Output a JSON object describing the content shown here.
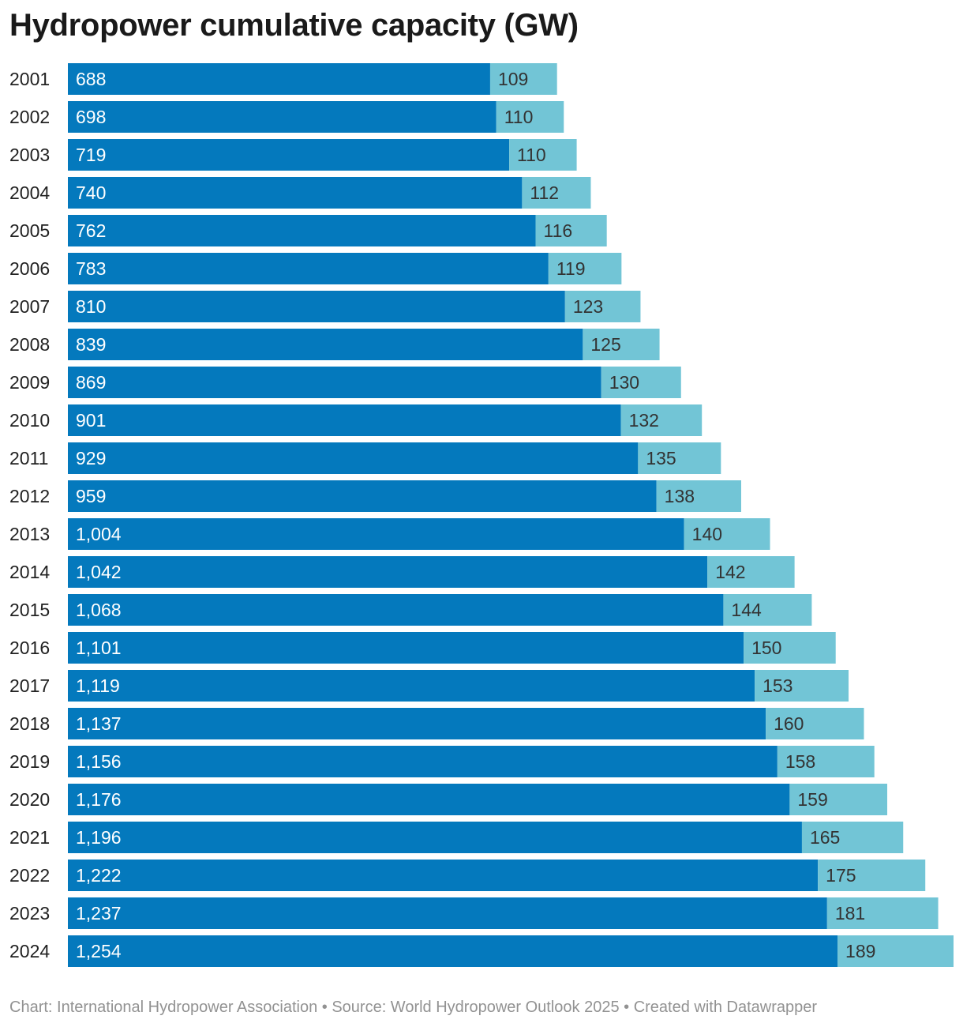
{
  "title": "Hydropower cumulative capacity (GW)",
  "footer": "Chart: International Hydropower Association • Source: World Hydropower Outlook 2025 • Created with Datawrapper",
  "colors": {
    "series1": "#0479bd",
    "series2": "#72c5d6",
    "label_light": "#ffffff",
    "label_dark": "#333333",
    "category_text": "#222222"
  },
  "chart_data": {
    "type": "bar",
    "orientation": "horizontal",
    "stacked": true,
    "categories": [
      "2001",
      "2002",
      "2003",
      "2004",
      "2005",
      "2006",
      "2007",
      "2008",
      "2009",
      "2010",
      "2011",
      "2012",
      "2013",
      "2014",
      "2015",
      "2016",
      "2017",
      "2018",
      "2019",
      "2020",
      "2021",
      "2022",
      "2023",
      "2024"
    ],
    "series": [
      {
        "values": [
          688,
          698,
          719,
          740,
          762,
          783,
          810,
          839,
          869,
          901,
          929,
          959,
          1004,
          1042,
          1068,
          1101,
          1119,
          1137,
          1156,
          1176,
          1196,
          1222,
          1237,
          1254
        ],
        "labels": [
          "688",
          "698",
          "719",
          "740",
          "762",
          "783",
          "810",
          "839",
          "869",
          "901",
          "929",
          "959",
          "1,004",
          "1,042",
          "1,068",
          "1,101",
          "1,119",
          "1,137",
          "1,156",
          "1,176",
          "1,196",
          "1,222",
          "1,237",
          "1,254"
        ]
      },
      {
        "values": [
          109,
          110,
          110,
          112,
          116,
          119,
          123,
          125,
          130,
          132,
          135,
          138,
          140,
          142,
          144,
          150,
          153,
          160,
          158,
          159,
          165,
          175,
          181,
          189
        ],
        "labels": [
          "109",
          "110",
          "110",
          "112",
          "116",
          "119",
          "123",
          "125",
          "130",
          "132",
          "135",
          "138",
          "140",
          "142",
          "144",
          "150",
          "153",
          "160",
          "158",
          "159",
          "165",
          "175",
          "181",
          "189"
        ]
      }
    ],
    "xlim": [
      0,
      1443
    ],
    "grid": false,
    "legend": "none"
  }
}
